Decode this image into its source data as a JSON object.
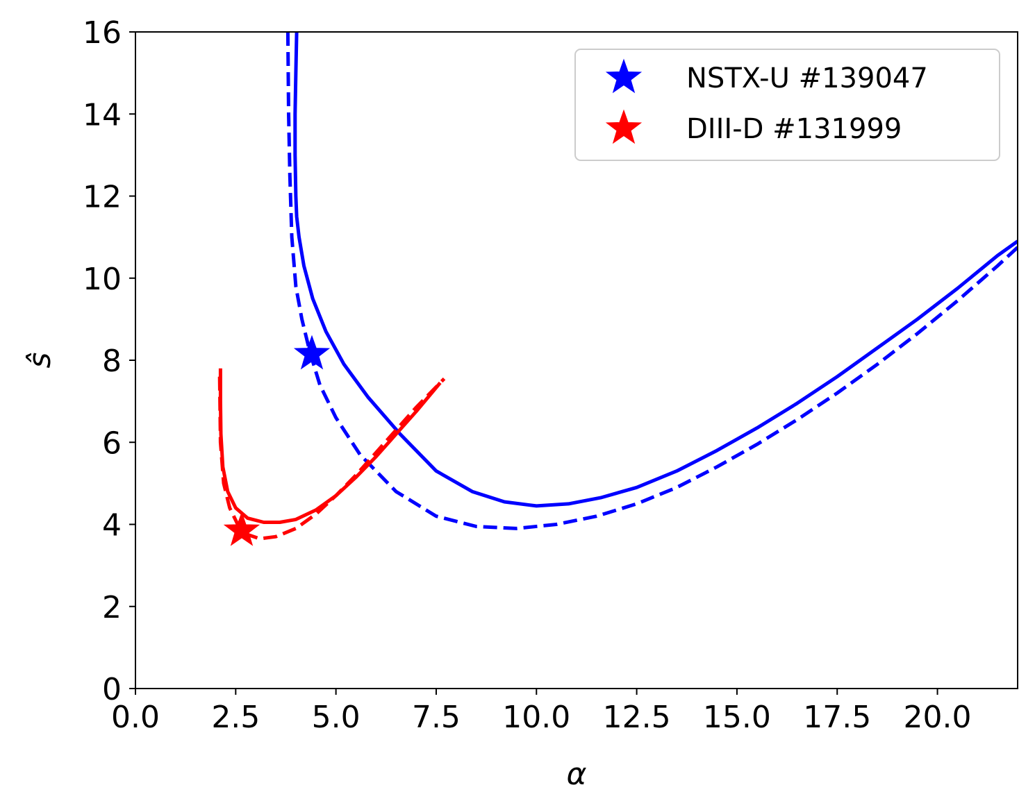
{
  "chart_data": {
    "type": "line",
    "xlabel": "α",
    "ylabel": "ŝ",
    "xlim": [
      0,
      22
    ],
    "ylim": [
      0,
      16
    ],
    "xticks": [
      "0.0",
      "2.5",
      "5.0",
      "7.5",
      "10.0",
      "12.5",
      "15.0",
      "17.5",
      "20.0"
    ],
    "yticks": [
      "0",
      "2",
      "4",
      "6",
      "8",
      "10",
      "12",
      "14",
      "16"
    ],
    "grid": false,
    "legend_position": "top-right",
    "legend": [
      {
        "label": "NSTX-U #139047",
        "color": "#0000ff",
        "marker": "star"
      },
      {
        "label": "DIII-D #131999",
        "color": "#ff0000",
        "marker": "star"
      }
    ],
    "series": [
      {
        "color": "#0000ff",
        "style": "solid",
        "x": [
          4.02,
          4.0,
          3.98,
          3.98,
          4.0,
          4.02,
          4.08,
          4.2,
          4.42,
          4.75,
          5.2,
          5.8,
          6.6,
          7.5,
          8.4,
          9.2,
          10.0,
          10.8,
          11.6,
          12.5,
          13.5,
          14.5,
          15.5,
          16.5,
          17.5,
          18.5,
          19.5,
          20.5,
          21.5,
          22.0
        ],
        "y": [
          16.0,
          15.0,
          14.0,
          13.0,
          12.0,
          11.5,
          11.0,
          10.3,
          9.5,
          8.7,
          7.9,
          7.1,
          6.2,
          5.3,
          4.8,
          4.55,
          4.45,
          4.5,
          4.65,
          4.9,
          5.3,
          5.8,
          6.35,
          6.95,
          7.6,
          8.3,
          9.0,
          9.75,
          10.55,
          10.9
        ]
      },
      {
        "color": "#0000ff",
        "style": "dashed",
        "x": [
          3.8,
          3.82,
          3.85,
          3.9,
          4.0,
          4.15,
          4.35,
          4.6,
          5.0,
          5.6,
          6.5,
          7.5,
          8.5,
          9.5,
          10.5,
          11.5,
          12.5,
          13.5,
          14.5,
          15.5,
          16.5,
          17.5,
          18.5,
          19.5,
          20.5,
          21.5,
          22.0
        ],
        "y": [
          16.0,
          14.0,
          12.5,
          11.0,
          9.8,
          9.0,
          8.2,
          7.4,
          6.6,
          5.7,
          4.8,
          4.2,
          3.95,
          3.9,
          4.0,
          4.2,
          4.5,
          4.9,
          5.4,
          5.95,
          6.55,
          7.2,
          7.9,
          8.65,
          9.45,
          10.3,
          10.75
        ]
      },
      {
        "color": "#ff0000",
        "style": "solid",
        "x": [
          2.12,
          2.12,
          2.13,
          2.18,
          2.3,
          2.5,
          2.8,
          3.2,
          3.6,
          4.0,
          4.5,
          5.0,
          5.5,
          6.0,
          6.5,
          7.0,
          7.6
        ],
        "y": [
          7.8,
          7.0,
          6.2,
          5.4,
          4.8,
          4.4,
          4.15,
          4.05,
          4.05,
          4.12,
          4.35,
          4.7,
          5.15,
          5.65,
          6.2,
          6.75,
          7.45
        ]
      },
      {
        "color": "#ff0000",
        "style": "dashed",
        "x": [
          2.1,
          2.12,
          2.2,
          2.35,
          2.55,
          2.8,
          3.1,
          3.5,
          4.0,
          4.5,
          5.0,
          5.5,
          6.0,
          6.5,
          7.0,
          7.7
        ],
        "y": [
          7.6,
          6.0,
          5.0,
          4.4,
          4.0,
          3.75,
          3.65,
          3.7,
          3.9,
          4.25,
          4.7,
          5.2,
          5.75,
          6.3,
          6.85,
          7.55
        ]
      }
    ],
    "markers": [
      {
        "label": "NSTX-U #139047",
        "x": 4.4,
        "y": 8.15,
        "color": "#0000ff"
      },
      {
        "label": "DIII-D #131999",
        "x": 2.65,
        "y": 3.85,
        "color": "#ff0000"
      }
    ]
  }
}
